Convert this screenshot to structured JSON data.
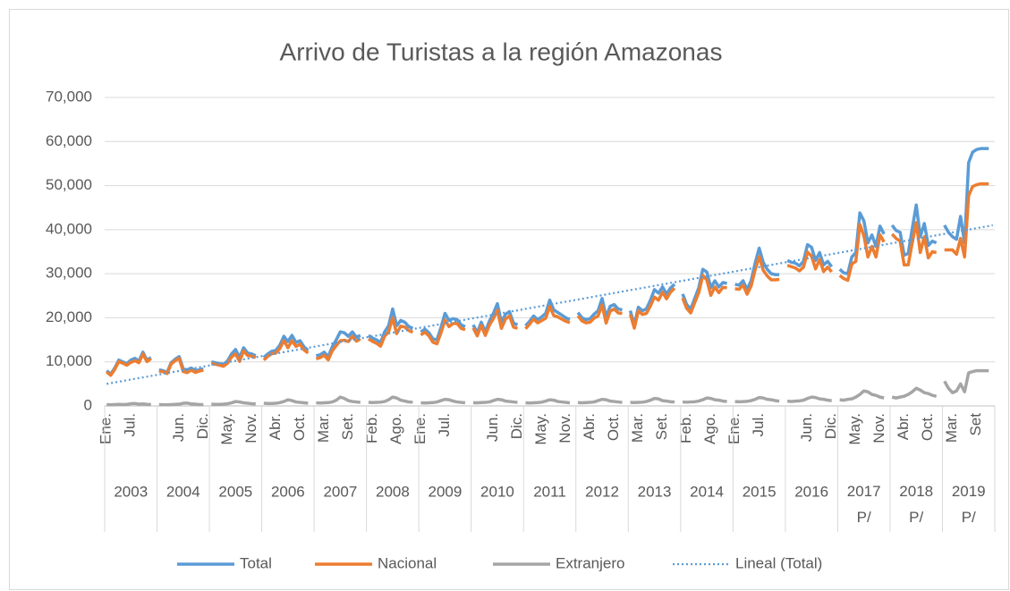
{
  "chart_data": {
    "type": "line",
    "title": "Arrivo de Turistas a la región Amazonas",
    "categories": [
      "Ene.",
      null,
      null,
      null,
      null,
      null,
      "Jul.",
      null,
      null,
      null,
      null,
      null,
      null,
      null,
      null,
      null,
      null,
      null,
      "Jun.",
      null,
      null,
      null,
      null,
      null,
      "Dic.",
      null,
      null,
      null,
      null,
      null,
      "May.",
      null,
      null,
      null,
      null,
      null,
      "Nov.",
      null,
      null,
      null,
      null,
      null,
      "Abr.",
      null,
      null,
      null,
      null,
      null,
      "Oct.",
      null,
      null,
      null,
      null,
      null,
      "Mar.",
      null,
      null,
      null,
      null,
      null,
      "Set.",
      null,
      null,
      null,
      null,
      null,
      "Feb.",
      null,
      null,
      null,
      null,
      null,
      "Ago.",
      null,
      null,
      null,
      null,
      null,
      "Ene.",
      null,
      null,
      null,
      null,
      null,
      "Jul.",
      null,
      null,
      null,
      null,
      null,
      null,
      null,
      null,
      null,
      null,
      null,
      "Jun.",
      null,
      null,
      null,
      null,
      null,
      "Dic.",
      null,
      null,
      null,
      null,
      null,
      "May.",
      null,
      null,
      null,
      null,
      null,
      "Nov.",
      null,
      null,
      null,
      null,
      null,
      "Abr.",
      null,
      null,
      null,
      null,
      null,
      "Oct.",
      null,
      null,
      null,
      null,
      null,
      "Mar.",
      null,
      null,
      null,
      null,
      null,
      "Set.",
      null,
      null,
      null,
      null,
      null,
      "Feb.",
      null,
      null,
      null,
      null,
      null,
      "Ago.",
      null,
      null,
      null,
      null,
      null,
      "Ene.",
      null,
      null,
      null,
      null,
      null,
      "Jul.",
      null,
      null,
      null,
      null,
      null,
      null,
      null,
      null,
      null,
      null,
      null,
      "Jun.",
      null,
      null,
      null,
      null,
      null,
      "Dic.",
      null,
      null,
      null,
      null,
      null,
      "May.",
      null,
      null,
      null,
      null,
      null,
      "Nov.",
      null,
      null,
      null,
      null,
      null,
      "Abr.",
      null,
      null,
      null,
      null,
      null,
      "Oct.",
      null,
      null,
      null,
      null,
      null,
      "Mar.",
      null,
      null,
      null,
      null,
      null,
      "Set",
      null,
      null,
      null,
      null
    ],
    "groups": [
      "2003",
      "2004",
      "2005",
      "2006",
      "2007",
      "2008",
      "2009",
      "2010",
      "2011",
      "2012",
      "2013",
      "2014",
      "2015",
      "2016",
      "2017 P/",
      "2018 P/",
      "2019 P/"
    ],
    "series": [
      {
        "name": "Total",
        "color": "#5b9bd5",
        "values": [
          8000,
          7200,
          8600,
          10400,
          10000,
          9600,
          10400,
          10800,
          10200,
          12200,
          10400,
          11000,
          null,
          8200,
          8000,
          7600,
          9800,
          10600,
          11200,
          8400,
          8200,
          8600,
          8000,
          8200,
          8400,
          null,
          10000,
          9800,
          9600,
          9400,
          10200,
          11800,
          12800,
          11000,
          13200,
          12000,
          11800,
          11400,
          null,
          11000,
          11800,
          12400,
          12600,
          13800,
          15800,
          14600,
          16000,
          14400,
          14800,
          13400,
          12600,
          null,
          11400,
          11600,
          12200,
          11200,
          13400,
          15000,
          16800,
          16600,
          15800,
          16800,
          15600,
          16000,
          null,
          16000,
          15400,
          15000,
          14400,
          16800,
          18200,
          22000,
          18200,
          19400,
          19000,
          18000,
          17600,
          null,
          16800,
          17400,
          16600,
          15200,
          15000,
          17800,
          21000,
          19400,
          19800,
          19600,
          18400,
          18000,
          null,
          18400,
          16600,
          19000,
          16800,
          19200,
          21000,
          23200,
          19000,
          20800,
          21400,
          18800,
          18400,
          null,
          18200,
          19200,
          20400,
          19600,
          20200,
          21000,
          24000,
          21800,
          21200,
          20600,
          20000,
          19600,
          null,
          21200,
          20000,
          19600,
          19800,
          20800,
          21600,
          24400,
          20200,
          22600,
          23000,
          22000,
          21800,
          null,
          21600,
          18400,
          22400,
          21600,
          22000,
          24000,
          26400,
          25600,
          27000,
          25400,
          26800,
          27600,
          null,
          25400,
          23000,
          22000,
          24400,
          26800,
          31000,
          30400,
          26800,
          28400,
          27000,
          28000,
          27800,
          null,
          27600,
          27400,
          28400,
          26400,
          28400,
          32400,
          35800,
          32600,
          31000,
          30000,
          29800,
          29800,
          null,
          33000,
          32600,
          32400,
          31800,
          32800,
          36600,
          36000,
          33000,
          34800,
          32000,
          32800,
          31600,
          null,
          31000,
          30200,
          30000,
          33800,
          34800,
          43800,
          42000,
          37000,
          38800,
          36200,
          40800,
          39000,
          null,
          41000,
          39800,
          39400,
          34200,
          34600,
          40200,
          45600,
          38400,
          41400,
          36400,
          37400,
          37000,
          null,
          41000,
          39400,
          38400,
          37800,
          43000,
          37000,
          55200,
          57600,
          58200,
          58400,
          58400,
          58400,
          null
        ]
      },
      {
        "name": "Nacional",
        "color": "#ed7d31",
        "values": [
          7700,
          6950,
          8300,
          10050,
          9700,
          9250,
          9900,
          10250,
          9800,
          11750,
          10050,
          10700,
          null,
          7900,
          7750,
          7350,
          9500,
          10250,
          10800,
          7800,
          7550,
          8150,
          7600,
          7900,
          8100,
          null,
          9600,
          9450,
          9250,
          9000,
          9700,
          11100,
          11800,
          10100,
          12500,
          11400,
          11300,
          10950,
          null,
          10400,
          11250,
          11850,
          12000,
          13050,
          14800,
          13200,
          14800,
          13500,
          14000,
          12700,
          12000,
          null,
          10700,
          10950,
          11500,
          10450,
          12500,
          13700,
          14800,
          14900,
          14600,
          15800,
          14700,
          15200,
          null,
          15200,
          14650,
          14200,
          13550,
          15800,
          16800,
          20000,
          16400,
          18100,
          17900,
          17100,
          16750,
          null,
          16100,
          16750,
          15900,
          14450,
          14100,
          16600,
          19500,
          18000,
          18700,
          18700,
          17600,
          17300,
          null,
          17700,
          15900,
          18250,
          16000,
          18300,
          19800,
          21700,
          17600,
          19700,
          20400,
          17900,
          17600,
          null,
          17500,
          18550,
          19700,
          18850,
          19350,
          19900,
          22600,
          20500,
          20200,
          19700,
          19200,
          18900,
          null,
          20450,
          19300,
          18850,
          19000,
          19900,
          20400,
          22900,
          18800,
          21500,
          22000,
          21100,
          21000,
          null,
          20800,
          17650,
          21600,
          20750,
          21000,
          22700,
          24700,
          24000,
          25800,
          24300,
          25850,
          26700,
          null,
          24500,
          22150,
          21100,
          23450,
          25700,
          29600,
          28600,
          25100,
          27000,
          25700,
          26900,
          26800,
          null,
          26600,
          26450,
          27400,
          25350,
          27200,
          30900,
          33900,
          30800,
          29500,
          28600,
          28600,
          28700,
          null,
          31900,
          31600,
          31300,
          30650,
          31500,
          34900,
          34000,
          31100,
          33200,
          30500,
          31500,
          30400,
          null,
          29600,
          28900,
          28500,
          32200,
          32800,
          41200,
          38600,
          33800,
          36200,
          33800,
          38800,
          37200,
          null,
          39000,
          38000,
          37400,
          32000,
          32000,
          37000,
          41600,
          34800,
          38400,
          33600,
          35000,
          34800,
          null,
          35400,
          35400,
          35400,
          34400,
          38000,
          33800,
          47700,
          49800,
          50200,
          50400,
          50400,
          50400,
          null
        ]
      },
      {
        "name": "Extranjero",
        "color": "#a5a5a5",
        "values": [
          300,
          250,
          300,
          350,
          300,
          350,
          500,
          550,
          400,
          450,
          350,
          300,
          null,
          300,
          250,
          250,
          300,
          350,
          400,
          600,
          650,
          450,
          400,
          300,
          300,
          null,
          400,
          350,
          350,
          400,
          500,
          700,
          1000,
          900,
          700,
          600,
          500,
          450,
          null,
          600,
          550,
          550,
          600,
          750,
          1000,
          1400,
          1200,
          900,
          800,
          700,
          600,
          null,
          700,
          650,
          700,
          750,
          900,
          1300,
          2000,
          1700,
          1200,
          1000,
          900,
          800,
          null,
          800,
          750,
          800,
          850,
          1000,
          1400,
          2000,
          1800,
          1300,
          1100,
          900,
          850,
          null,
          700,
          650,
          700,
          750,
          900,
          1200,
          1500,
          1400,
          1100,
          900,
          800,
          700,
          null,
          700,
          700,
          750,
          800,
          900,
          1200,
          1500,
          1400,
          1100,
          1000,
          900,
          800,
          null,
          700,
          650,
          700,
          750,
          850,
          1100,
          1400,
          1300,
          1000,
          900,
          800,
          700,
          null,
          750,
          700,
          750,
          800,
          900,
          1200,
          1500,
          1400,
          1100,
          1000,
          900,
          800,
          null,
          800,
          750,
          800,
          850,
          1000,
          1300,
          1700,
          1600,
          1200,
          1100,
          950,
          900,
          null,
          900,
          850,
          900,
          950,
          1100,
          1400,
          1800,
          1700,
          1400,
          1300,
          1100,
          1000,
          null,
          1000,
          950,
          1000,
          1050,
          1200,
          1500,
          1900,
          1800,
          1500,
          1400,
          1200,
          1100,
          null,
          1100,
          1000,
          1100,
          1150,
          1300,
          1700,
          2000,
          1900,
          1600,
          1500,
          1300,
          1200,
          null,
          1400,
          1300,
          1500,
          1600,
          2000,
          2600,
          3400,
          3200,
          2600,
          2400,
          2000,
          1800,
          null,
          2000,
          1800,
          2000,
          2200,
          2600,
          3200,
          4000,
          3600,
          3000,
          2800,
          2400,
          2200,
          null,
          5600,
          4000,
          3000,
          3400,
          5000,
          3200,
          7500,
          7800,
          8000,
          8000,
          8000,
          8000,
          null
        ]
      }
    ],
    "trendline": {
      "name": "Lineal (Total)",
      "color": "#5b9bd5",
      "values": [
        5000,
        41000
      ]
    },
    "ylim": [
      0,
      70000
    ],
    "yticks": [
      0,
      {
        "value": 10000,
        "label": "10,000"
      },
      {
        "value": 20000,
        "label": "20,000"
      },
      {
        "value": 30000,
        "label": "30,000"
      },
      {
        "value": 40000,
        "label": "40,000"
      },
      {
        "value": 50000,
        "label": "50,000"
      },
      {
        "value": 60000,
        "label": "60,000"
      },
      {
        "value": 70000,
        "label": "70,000"
      }
    ],
    "grid": true,
    "legend": "bottom"
  }
}
